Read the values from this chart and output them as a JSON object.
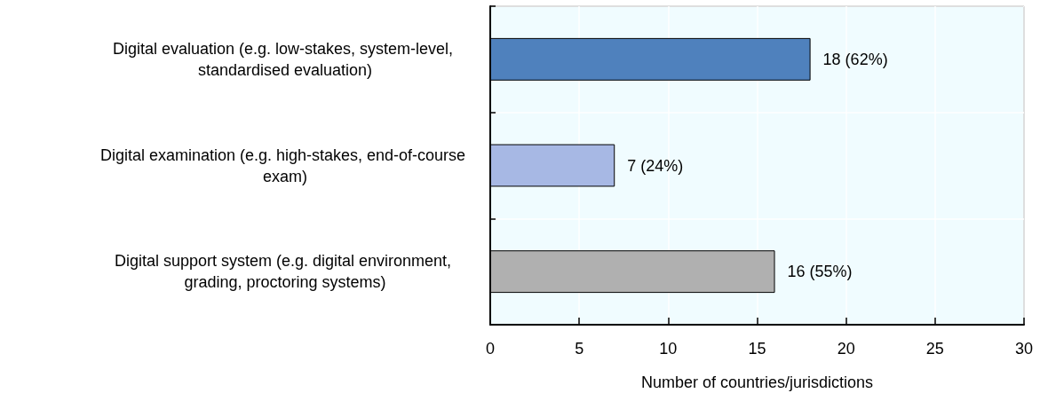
{
  "chart_data": {
    "type": "bar",
    "orientation": "horizontal",
    "categories": [
      "Digital evaluation (e.g. low-stakes, system-level, standardised evaluation)",
      "Digital examination (e.g. high-stakes, end-of-course exam)",
      "Digital support system (e.g. digital environment, grading, proctoring systems)"
    ],
    "values": [
      18,
      7,
      16
    ],
    "colors": [
      "#4f81bd",
      "#a7b8e4",
      "#b0b0b0"
    ],
    "value_labels": [
      "18 (62%)",
      "7 (24%)",
      "16 (55%)"
    ],
    "xlabel": "Number of countries/jurisdictions",
    "xlim": [
      0,
      30
    ],
    "xticks": [
      0,
      5,
      10,
      15,
      20,
      25,
      30
    ],
    "grid": true
  }
}
